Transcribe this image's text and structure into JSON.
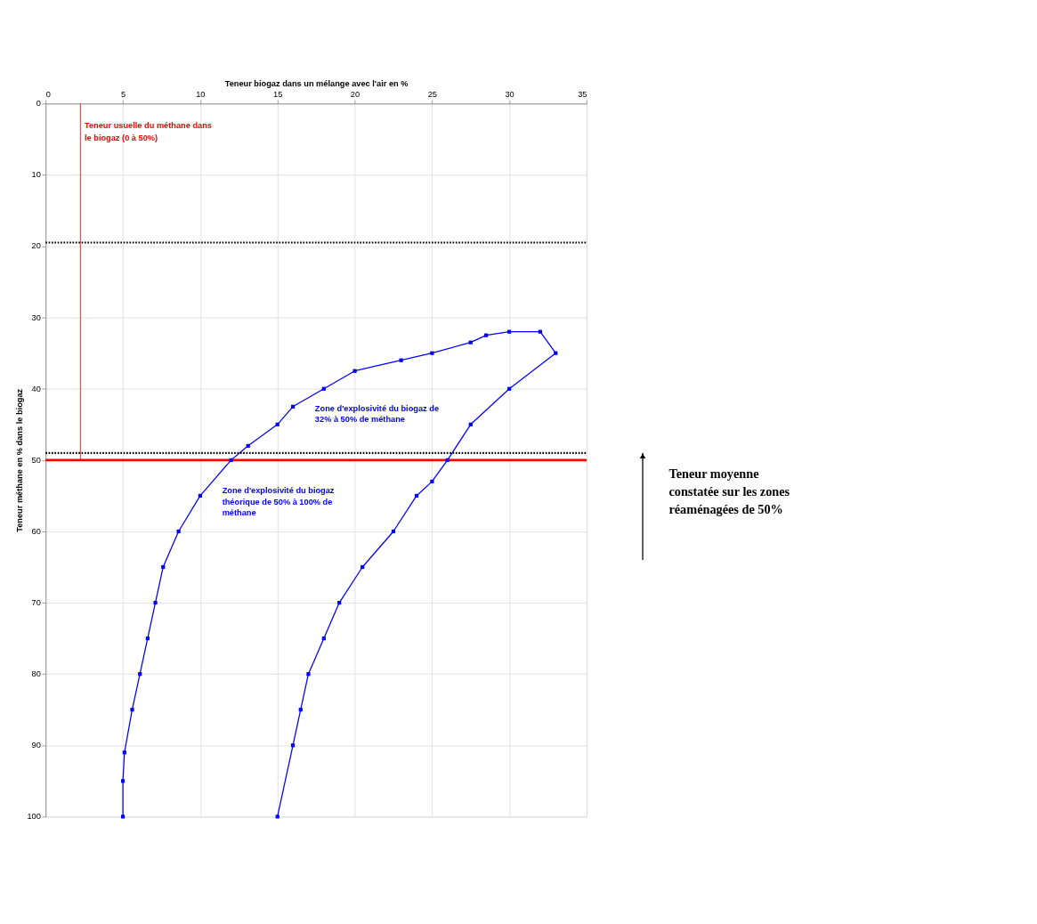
{
  "chart_data": {
    "type": "line",
    "xlabel": "Teneur biogaz dans un mélange avec l'air en %",
    "ylabel": "Teneur méthane en % dans le biogaz",
    "x": [
      5,
      5,
      5.1,
      5.6,
      6.1,
      6.6,
      7.1,
      7.6,
      8.6,
      10,
      12,
      13.1,
      15,
      16,
      18,
      20,
      23,
      25,
      27.5,
      28.5,
      30,
      32,
      33,
      30,
      27.5,
      26,
      25,
      24,
      22.5,
      20.5,
      19,
      18,
      17,
      16.5,
      16,
      15
    ],
    "series": [
      {
        "type": "line",
        "color": "#ff0000",
        "x": [
          2.25,
          2.25
        ],
        "values": [
          0,
          50
        ],
        "marker": "none"
      },
      {
        "color": "#0000ff",
        "values": [
          100,
          95,
          91,
          85,
          80,
          75,
          70,
          65,
          60,
          55,
          50,
          48,
          45,
          42.5,
          40,
          37.5,
          36,
          35,
          33.5,
          32.5,
          32,
          32,
          35,
          40,
          45,
          50,
          53,
          55,
          60,
          65,
          70,
          75,
          80,
          85,
          90,
          100
        ]
      }
    ],
    "marker": "square",
    "line_style": "solid",
    "grid": true,
    "xlim": [
      0,
      35
    ],
    "xticks": [
      0,
      5,
      10,
      15,
      20,
      25,
      30,
      35
    ],
    "ylim": [
      100,
      0
    ],
    "yticks": [
      0,
      10,
      20,
      30,
      40,
      50,
      60,
      70,
      80,
      90,
      100
    ],
    "ref_lines": [
      {
        "axis": "y",
        "value": 50,
        "color": "#ff0000",
        "line_style": "solid"
      },
      {
        "axis": "y",
        "value": 19.5,
        "color": "#000000",
        "line_style": "dotted"
      },
      {
        "axis": "y",
        "value": 49,
        "color": "#000000",
        "line_style": "dotted",
        "label": "Teneur moyenne\nconstatée sur les zones\nréaménagées de 50%"
      }
    ],
    "annotations": [
      "Teneur usuelle du méthane dans\nle biogaz (0 à 50%)",
      "Zone d'explosivité du biogaz de\n32% à 50% de méthane",
      "Zone d'explosivité du biogaz\nthéorique de 50% à 100% de\nméthane"
    ]
  }
}
